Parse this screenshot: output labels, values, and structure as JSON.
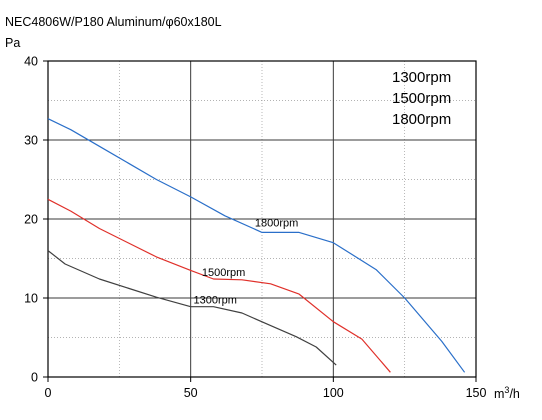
{
  "title": "NEC4806W/P180 Aluminum/φ60x180L",
  "y_unit": "Pa",
  "x_unit": "m³/h",
  "legend": [
    "1300rpm",
    "1500rpm",
    "1800rpm"
  ],
  "chart_data": {
    "type": "line",
    "title": "NEC4806W/P180 Aluminum/φ60x180L",
    "ylabel": "Pa",
    "xlabel": "m³/h",
    "xlim": [
      0,
      150
    ],
    "ylim": [
      0,
      40
    ],
    "x_ticks": [
      0,
      50,
      100,
      150
    ],
    "y_ticks": [
      0,
      10,
      20,
      30,
      40
    ],
    "grid": true,
    "legend_position": "top-right",
    "series": [
      {
        "name": "1300rpm",
        "color": "#404040",
        "label": "1300rpm",
        "points": [
          [
            0,
            16.0
          ],
          [
            6,
            14.3
          ],
          [
            18,
            12.4
          ],
          [
            38,
            10.1
          ],
          [
            50,
            8.9
          ],
          [
            58,
            8.9
          ],
          [
            68,
            8.1
          ],
          [
            78,
            6.5
          ],
          [
            87,
            5.1
          ],
          [
            94,
            3.8
          ],
          [
            101,
            1.5
          ]
        ]
      },
      {
        "name": "1500rpm",
        "color": "#e0302a",
        "label": "1500rpm",
        "points": [
          [
            0,
            22.5
          ],
          [
            8,
            21.0
          ],
          [
            18,
            18.8
          ],
          [
            38,
            15.2
          ],
          [
            50,
            13.5
          ],
          [
            58,
            12.4
          ],
          [
            68,
            12.3
          ],
          [
            78,
            11.8
          ],
          [
            88,
            10.5
          ],
          [
            100,
            7.0
          ],
          [
            110,
            4.8
          ],
          [
            120,
            0.6
          ]
        ]
      },
      {
        "name": "1800rpm",
        "color": "#2a6fc9",
        "label": "1800rpm",
        "points": [
          [
            0,
            32.7
          ],
          [
            8,
            31.3
          ],
          [
            18,
            29.2
          ],
          [
            38,
            25.0
          ],
          [
            50,
            22.8
          ],
          [
            62,
            20.4
          ],
          [
            75,
            18.3
          ],
          [
            88,
            18.3
          ],
          [
            100,
            17.0
          ],
          [
            115,
            13.6
          ],
          [
            125,
            10.0
          ],
          [
            138,
            4.5
          ],
          [
            146,
            0.6
          ]
        ]
      }
    ]
  }
}
